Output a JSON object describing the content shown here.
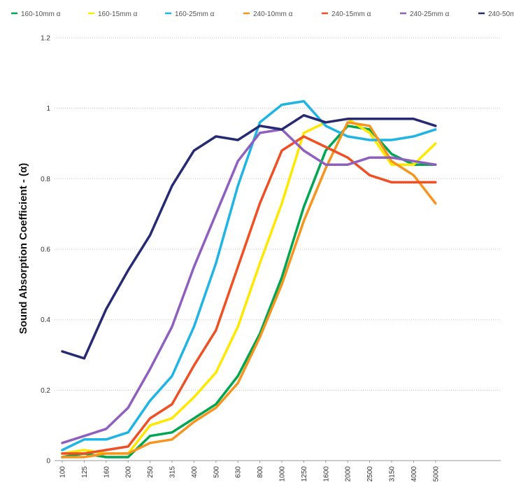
{
  "chart_data": {
    "type": "line",
    "title": "",
    "xlabel": "",
    "ylabel": "Sound Absorption Coefficient - (α)",
    "ylim": [
      0,
      1.2
    ],
    "yticks": [
      "0",
      "0.2",
      "0.4",
      "0.6",
      "0.8",
      "1",
      "1.2"
    ],
    "ytick_values": [
      0,
      0.2,
      0.4,
      0.6,
      0.8,
      1.0,
      1.2
    ],
    "grid": true,
    "legend": "top",
    "categories": [
      "100",
      "125",
      "160",
      "200",
      "250",
      "315",
      "400",
      "500",
      "630",
      "800",
      "1000",
      "1250",
      "1600",
      "2000",
      "2500",
      "3150",
      "4000",
      "5000"
    ],
    "series": [
      {
        "name": "160-10mm α",
        "color": "#00a651",
        "values": [
          0.01,
          0.02,
          0.01,
          0.01,
          0.07,
          0.08,
          0.12,
          0.16,
          0.24,
          0.36,
          0.52,
          0.72,
          0.88,
          0.95,
          0.94,
          0.87,
          0.84,
          0.84
        ]
      },
      {
        "name": "160-15mm α",
        "color": "#ffe800",
        "values": [
          0.02,
          0.03,
          0.02,
          0.02,
          0.1,
          0.12,
          0.18,
          0.25,
          0.38,
          0.56,
          0.73,
          0.93,
          0.96,
          0.97,
          0.93,
          0.84,
          0.84,
          0.9
        ]
      },
      {
        "name": "160-25mm α",
        "color": "#1eb4e3",
        "values": [
          0.03,
          0.06,
          0.06,
          0.08,
          0.17,
          0.24,
          0.38,
          0.56,
          0.78,
          0.96,
          1.01,
          1.02,
          0.95,
          0.92,
          0.91,
          0.91,
          0.92,
          0.94
        ]
      },
      {
        "name": "240-10mm α",
        "color": "#f7941d",
        "values": [
          0.01,
          0.01,
          0.02,
          0.02,
          0.05,
          0.06,
          0.11,
          0.15,
          0.22,
          0.35,
          0.5,
          0.68,
          0.83,
          0.96,
          0.95,
          0.85,
          0.81,
          0.73
        ]
      },
      {
        "name": "240-15mm α",
        "color": "#f04e23",
        "values": [
          0.02,
          0.02,
          0.03,
          0.04,
          0.12,
          0.16,
          0.27,
          0.37,
          0.55,
          0.73,
          0.88,
          0.92,
          0.89,
          0.86,
          0.81,
          0.79,
          0.79,
          0.79
        ]
      },
      {
        "name": "240-25mm α",
        "color": "#8f5fbf",
        "values": [
          0.05,
          0.07,
          0.09,
          0.15,
          0.26,
          0.38,
          0.55,
          0.7,
          0.85,
          0.93,
          0.94,
          0.88,
          0.84,
          0.84,
          0.86,
          0.86,
          0.85,
          0.84
        ]
      },
      {
        "name": "240-50mm α",
        "color": "#262a73",
        "values": [
          0.31,
          0.29,
          0.43,
          0.54,
          0.64,
          0.78,
          0.88,
          0.92,
          0.91,
          0.95,
          0.94,
          0.98,
          0.96,
          0.97,
          0.97,
          0.97,
          0.97,
          0.95
        ]
      }
    ]
  }
}
